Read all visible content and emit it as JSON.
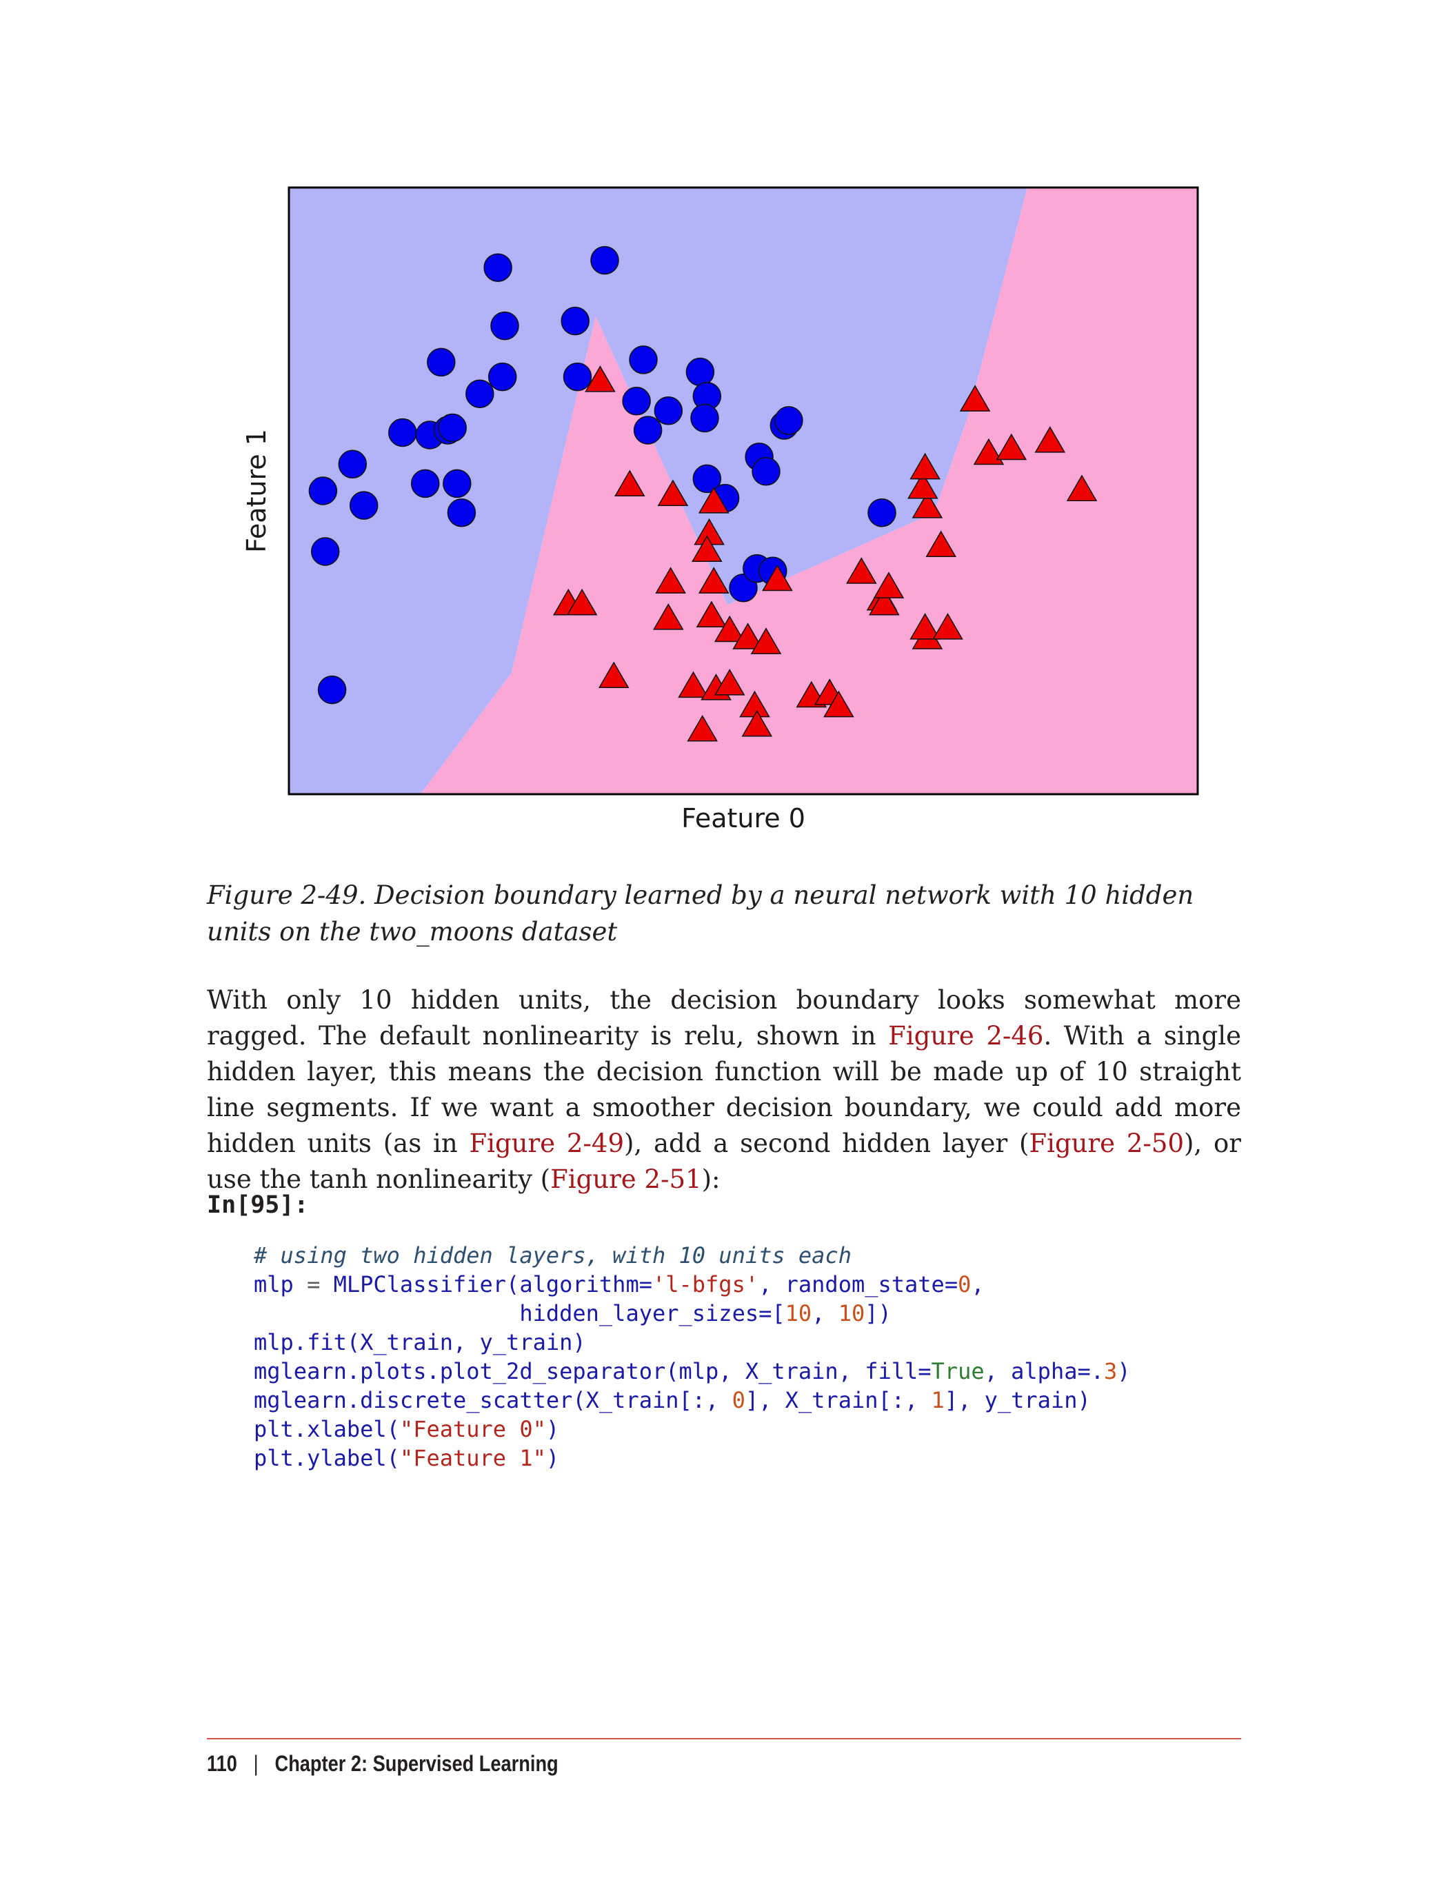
{
  "chart_data": {
    "type": "scatter",
    "xlabel": "Feature 0",
    "ylabel": "Feature 1",
    "xlim": [
      -1.5,
      2.5
    ],
    "ylim": [
      -1.0,
      1.5
    ],
    "background_regions": {
      "class_0_color": "#b3b3fa",
      "class_1_color": "#fba8d6",
      "boundary": [
        [
          -0.92,
          -1.0
        ],
        [
          -0.52,
          -0.5
        ],
        [
          -0.15,
          0.97
        ],
        [
          0.43,
          -0.22
        ],
        [
          1.34,
          0.16
        ],
        [
          1.49,
          0.56
        ],
        [
          1.75,
          1.5
        ]
      ]
    },
    "series": [
      {
        "marker": "circle",
        "color": "#0000ee",
        "points": [
          [
            -1.35,
            0.25
          ],
          [
            -1.22,
            0.36
          ],
          [
            -1.17,
            0.19
          ],
          [
            -1.34,
            0.0
          ],
          [
            -1.31,
            -0.57
          ],
          [
            -1.0,
            0.49
          ],
          [
            -0.88,
            0.48
          ],
          [
            -0.83,
            0.78
          ],
          [
            -0.8,
            0.5
          ],
          [
            -0.78,
            0.51
          ],
          [
            -0.9,
            0.28
          ],
          [
            -0.76,
            0.28
          ],
          [
            -0.74,
            0.16
          ],
          [
            -0.58,
            1.17
          ],
          [
            -0.55,
            0.93
          ],
          [
            -0.56,
            0.72
          ],
          [
            -0.23,
            0.72
          ],
          [
            -0.11,
            1.2
          ],
          [
            0.03,
            0.62
          ],
          [
            0.06,
            0.79
          ],
          [
            0.08,
            0.5
          ],
          [
            0.17,
            0.58
          ],
          [
            0.31,
            0.74
          ],
          [
            0.34,
            0.64
          ],
          [
            0.33,
            0.55
          ],
          [
            0.34,
            0.3
          ],
          [
            0.42,
            0.22
          ],
          [
            0.5,
            -0.15
          ],
          [
            0.56,
            -0.07
          ],
          [
            0.57,
            0.39
          ],
          [
            0.6,
            0.33
          ],
          [
            0.68,
            0.52
          ],
          [
            0.7,
            0.54
          ],
          [
            0.63,
            -0.08
          ],
          [
            1.11,
            0.16
          ],
          [
            -0.66,
            0.65
          ],
          [
            -0.24,
            0.95
          ]
        ]
      },
      {
        "marker": "triangle",
        "color": "#ee0000",
        "points": [
          [
            -0.13,
            0.7
          ],
          [
            0.0,
            0.27
          ],
          [
            0.19,
            0.23
          ],
          [
            0.37,
            0.2
          ],
          [
            0.35,
            0.07
          ],
          [
            0.34,
            0.0
          ],
          [
            0.18,
            -0.13
          ],
          [
            0.37,
            -0.13
          ],
          [
            0.17,
            -0.28
          ],
          [
            0.36,
            -0.27
          ],
          [
            -0.27,
            -0.22
          ],
          [
            -0.21,
            -0.22
          ],
          [
            0.44,
            -0.33
          ],
          [
            0.52,
            -0.36
          ],
          [
            0.6,
            -0.38
          ],
          [
            -0.07,
            -0.52
          ],
          [
            0.28,
            -0.56
          ],
          [
            0.38,
            -0.57
          ],
          [
            0.44,
            -0.55
          ],
          [
            0.55,
            -0.64
          ],
          [
            0.32,
            -0.74
          ],
          [
            0.56,
            -0.72
          ],
          [
            0.8,
            -0.6
          ],
          [
            0.88,
            -0.59
          ],
          [
            0.92,
            -0.64
          ],
          [
            1.02,
            -0.09
          ],
          [
            1.11,
            -0.2
          ],
          [
            1.12,
            -0.22
          ],
          [
            1.14,
            -0.15
          ],
          [
            1.31,
            -0.36
          ],
          [
            1.3,
            -0.32
          ],
          [
            1.37,
            0.02
          ],
          [
            1.31,
            0.18
          ],
          [
            1.29,
            0.26
          ],
          [
            1.3,
            0.34
          ],
          [
            1.52,
            0.62
          ],
          [
            1.58,
            0.4
          ],
          [
            1.68,
            0.42
          ],
          [
            1.85,
            0.45
          ],
          [
            1.99,
            0.25
          ],
          [
            0.65,
            -0.12
          ],
          [
            1.4,
            -0.32
          ]
        ]
      }
    ]
  },
  "caption": {
    "text": "Figure 2-49. Decision boundary learned by a neural network with 10 hidden units on the two_moons dataset"
  },
  "paragraph": {
    "part1": "With only 10 hidden units, the decision boundary looks somewhat more ragged. The default nonlinearity is relu, shown in ",
    "ref1": "Figure 2-46",
    "part2": ". With a single hidden layer, this means the decision function will be made up of 10 straight line segments. If we want a smoother decision boundary, we could add more hidden units (as in ",
    "ref2": "Figure 2-49",
    "part3": "), add a second hidden layer (",
    "ref3": "Figure 2-50",
    "part4": "), or use the tanh nonlinearity (",
    "ref4": "Figure 2-51",
    "part5": "):"
  },
  "input_label": "In[95]:",
  "code": {
    "comment": "# using two hidden layers, with 10 units each",
    "l2_a": "mlp",
    "l2_b": " = ",
    "l2_c": "MLPClassifier(algorithm=",
    "l2_d": "'l-bfgs'",
    "l2_e": ", random_state=",
    "l2_f": "0",
    "l2_g": ",",
    "l3_a": "                    hidden_layer_sizes=[",
    "l3_b": "10",
    "l3_c": ", ",
    "l3_d": "10",
    "l3_e": "])",
    "l4": "mlp.fit(X_train, y_train)",
    "l5_a": "mglearn.plots.plot_2d_separator(mlp, X_train, fill=",
    "l5_b": "True",
    "l5_c": ", alpha=.",
    "l5_d": "3",
    "l5_e": ")",
    "l6_a": "mglearn.discrete_scatter(X_train[:, ",
    "l6_b": "0",
    "l6_c": "], X_train[:, ",
    "l6_d": "1",
    "l6_e": "], y_train)",
    "l7_a": "plt.xlabel(",
    "l7_b": "\"Feature 0\"",
    "l7_c": ")",
    "l8_a": "plt.ylabel(",
    "l8_b": "\"Feature 1\"",
    "l8_c": ")"
  },
  "footer": {
    "page_number": "110",
    "separator": "|",
    "chapter": "Chapter 2: Supervised Learning"
  }
}
